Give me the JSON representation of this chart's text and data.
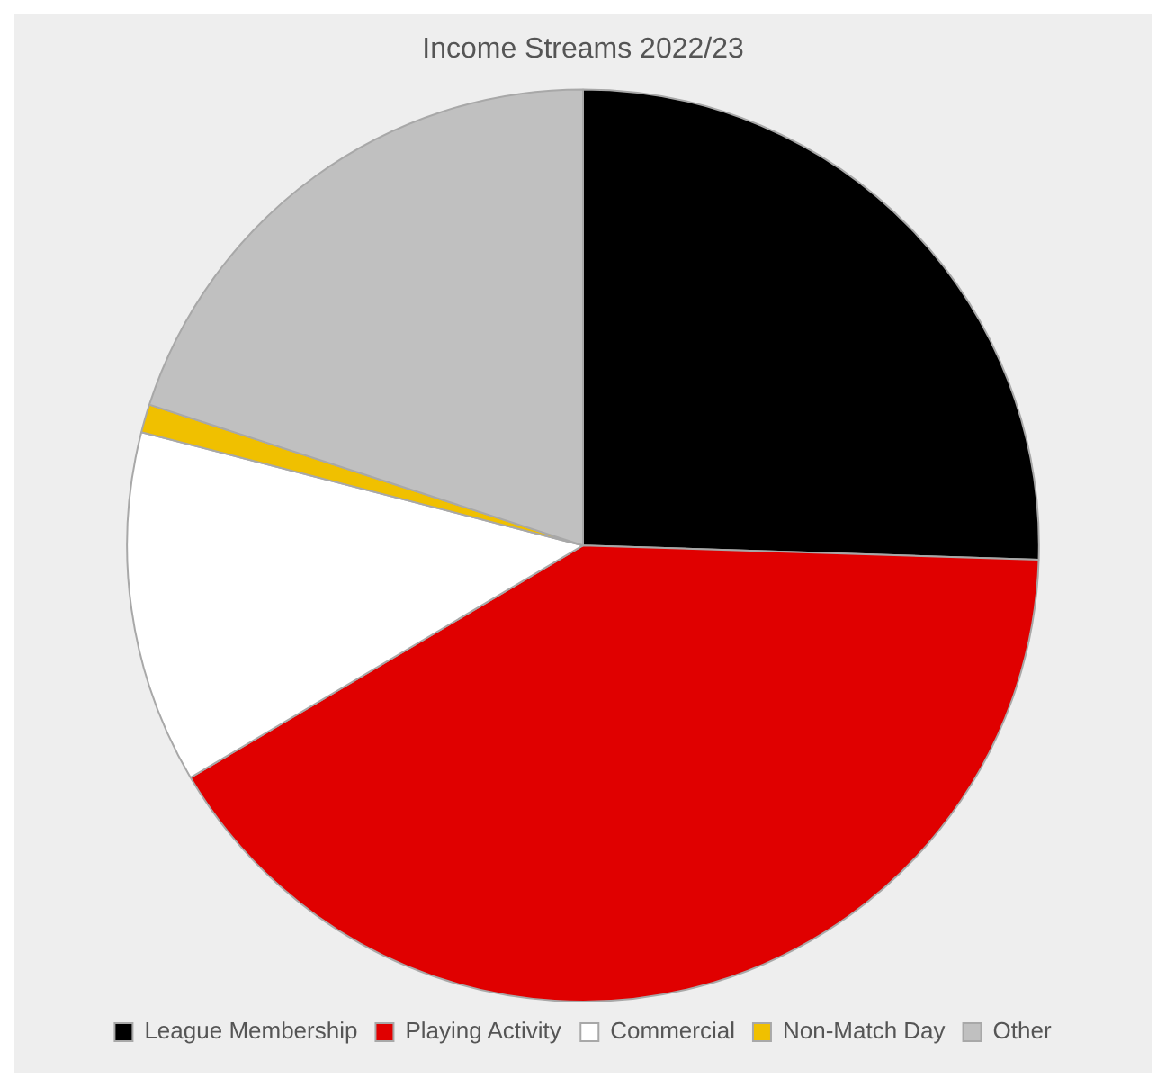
{
  "chart_data": {
    "type": "pie",
    "title": "Income Streams 2022/23",
    "categories": [
      "League Membership",
      "Playing Activity",
      "Commercial",
      "Non-Match Day",
      "Other"
    ],
    "values": [
      25.5,
      41,
      12.5,
      1,
      20
    ],
    "colors": [
      "#000000",
      "#e00000",
      "#ffffff",
      "#f0c000",
      "#c0c0c0"
    ],
    "legend": "bottom"
  }
}
